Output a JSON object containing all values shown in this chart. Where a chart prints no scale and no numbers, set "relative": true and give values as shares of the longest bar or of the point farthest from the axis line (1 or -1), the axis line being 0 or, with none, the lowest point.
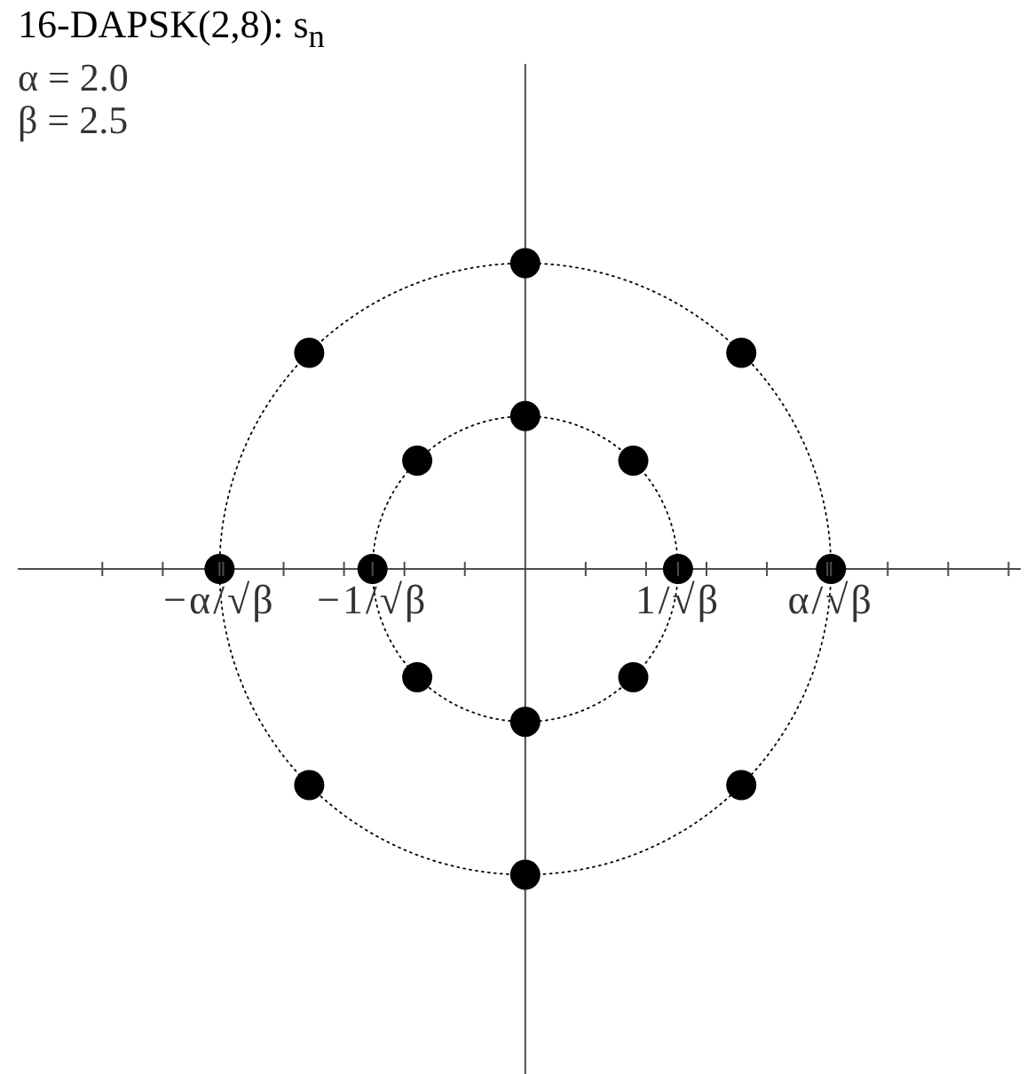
{
  "chart_data": {
    "type": "scatter",
    "title": "16-DAPSK(2,8): s$_{n}$",
    "annotations": [
      "α = 2.0",
      "β = 2.5"
    ],
    "relative": true,
    "series": [
      {
        "color": "#000000",
        "x": [
          0.632,
          0.447,
          0,
          -0.447,
          -0.632,
          -0.447,
          0,
          0.447,
          1.265,
          0.894,
          0,
          -0.894,
          -1.265,
          -0.894,
          0,
          0.894
        ],
        "values": [
          0,
          0.354,
          0.5,
          0.354,
          0,
          -0.354,
          -0.5,
          -0.354,
          0,
          0.707,
          1,
          0.707,
          0,
          -0.707,
          -1,
          -0.707
        ]
      }
    ],
    "xlim": [
      -2.1,
      2.05
    ],
    "xticks": [
      {
        "value": -1.75,
        "label": null
      },
      {
        "value": -1.5,
        "label": null
      },
      {
        "value": -1.265,
        "label": "−α/√β"
      },
      {
        "value": -1.25,
        "label": null
      },
      {
        "value": -1,
        "label": null
      },
      {
        "value": -0.75,
        "label": null
      },
      {
        "value": -0.632,
        "label": "−1/√β"
      },
      {
        "value": -0.5,
        "label": null
      },
      {
        "value": -0.25,
        "label": null
      },
      {
        "value": 0.25,
        "label": null
      },
      {
        "value": 0.5,
        "label": null
      },
      {
        "value": 0.632,
        "label": "1/√β"
      },
      {
        "value": 0.75,
        "label": null
      },
      {
        "value": 1,
        "label": null
      },
      {
        "value": 1.25,
        "label": null
      },
      {
        "value": 1.265,
        "label": "α/√β"
      },
      {
        "value": 1.5,
        "label": null
      },
      {
        "value": 1.75,
        "label": null
      },
      {
        "value": 2,
        "label": null
      }
    ],
    "tick_labels": "x",
    "marker": "circle"
  }
}
